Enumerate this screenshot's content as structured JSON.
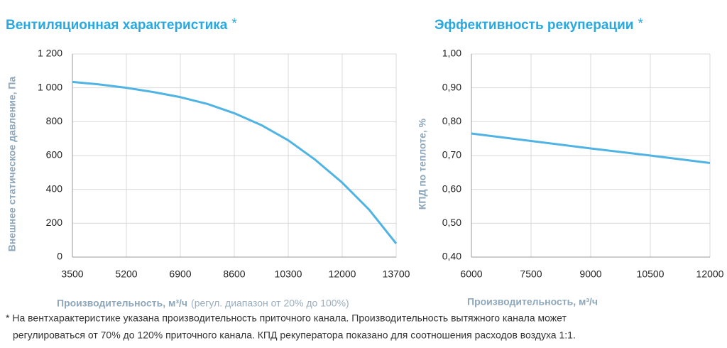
{
  "chart_data": [
    {
      "type": "line",
      "title": "Вентиляционная характеристика",
      "title_mark": "*",
      "x": [
        3500,
        4350,
        5200,
        6050,
        6900,
        7750,
        8600,
        9450,
        10300,
        11150,
        12000,
        12850,
        13700
      ],
      "series": [
        {
          "color": "#4fb3e3",
          "values": [
            1035,
            1020,
            1000,
            975,
            945,
            905,
            850,
            780,
            690,
            575,
            440,
            280,
            80
          ]
        }
      ],
      "xlim": [
        3500,
        13700
      ],
      "xticks": [
        3500,
        5200,
        6900,
        8600,
        10300,
        12000,
        13700
      ],
      "ylim": [
        0,
        1200
      ],
      "yticks": [
        0,
        200,
        400,
        600,
        800,
        {
          "value": 1000,
          "label": "1 000"
        },
        {
          "value": 1200,
          "label": "1 200"
        }
      ],
      "xlabel": "Производительность, м³/ч",
      "xlabel_note": "(регул. диапазон от 20% до 100%)",
      "ylabel": "Внешнее статическое давление, Па",
      "grid": true
    },
    {
      "type": "line",
      "title": "Эффективность рекуперации",
      "title_mark": "*",
      "x": [
        6000,
        7500,
        9000,
        10500,
        12000
      ],
      "series": [
        {
          "color": "#4fb3e3",
          "values": [
            0.765,
            0.743,
            0.721,
            0.7,
            0.678
          ]
        }
      ],
      "xlim": [
        6000,
        12000
      ],
      "xticks": [
        6000,
        7500,
        9000,
        10500,
        12000
      ],
      "ylim": [
        0.4,
        1.0
      ],
      "yticks": [
        {
          "value": 0.4,
          "label": "0,40"
        },
        {
          "value": 0.5,
          "label": "0,50"
        },
        {
          "value": 0.6,
          "label": "0,60"
        },
        {
          "value": 0.7,
          "label": "0,70"
        },
        {
          "value": 0.8,
          "label": "0,80"
        },
        {
          "value": 0.9,
          "label": "0,90"
        },
        {
          "value": 1.0,
          "label": "1,00"
        }
      ],
      "xlabel": "Производительность, м³/ч",
      "ylabel": "КПД по теплоте, %",
      "grid": true
    }
  ],
  "footnote": [
    "* На вентхарактеристике указана производительность приточного канала. Производительность вытяжного канала может",
    "регулироваться от 70% до 120% приточного канала. КПД рекуператора показано для соотношения расходов воздуха 1:1."
  ]
}
